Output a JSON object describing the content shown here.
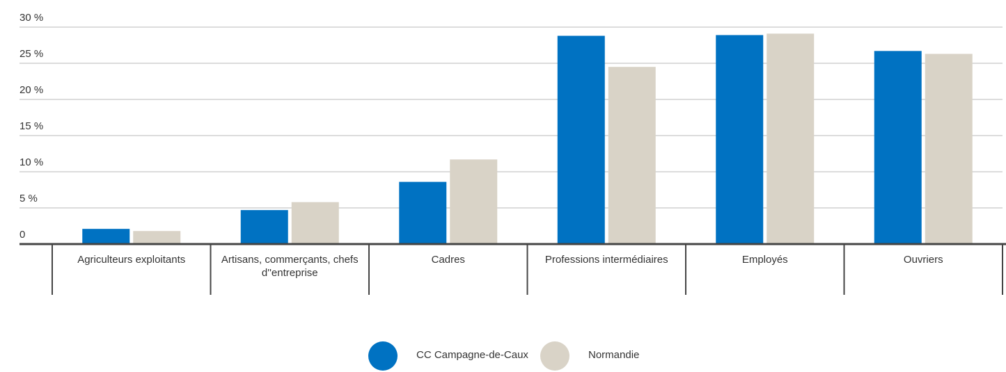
{
  "chart_data": {
    "type": "bar",
    "categories": [
      "Agriculteurs exploitants",
      "Artisans, commerçants, chefs d''entreprise",
      "Cadres",
      "Professions intermédiaires",
      "Employés",
      "Ouvriers"
    ],
    "series": [
      {
        "name": "CC Campagne-de-Caux",
        "color": "#0072c2",
        "values": [
          2.1,
          4.7,
          8.6,
          28.8,
          28.9,
          26.7
        ]
      },
      {
        "name": "Normandie",
        "color": "#d9d3c7",
        "values": [
          1.8,
          5.8,
          11.7,
          24.5,
          29.1,
          26.3
        ]
      }
    ],
    "ylim": [
      0,
      30
    ],
    "yticks": [
      0,
      {
        "value": 5,
        "label": "5 %"
      },
      {
        "value": 10,
        "label": "10 %"
      },
      {
        "value": 15,
        "label": "15 %"
      },
      {
        "value": 20,
        "label": "20 %"
      },
      {
        "value": 25,
        "label": "25 %"
      },
      {
        "value": 30,
        "label": "30 %"
      }
    ],
    "grid": true,
    "legend": "bottom"
  }
}
